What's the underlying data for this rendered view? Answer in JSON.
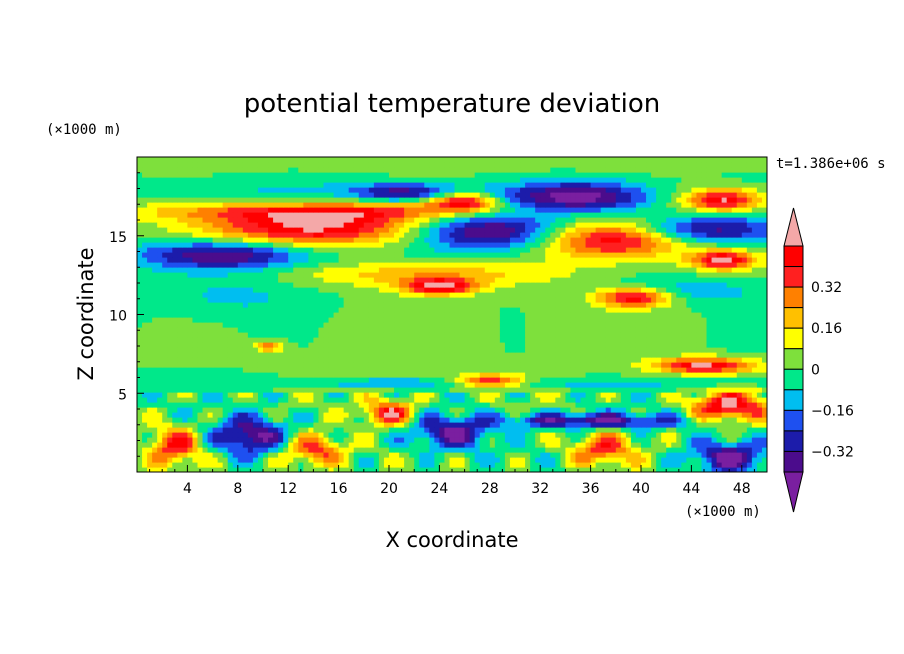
{
  "chart_data": {
    "type": "heatmap",
    "title": "potential temperature deviation",
    "xlabel": "X coordinate",
    "ylabel": "Z coordinate",
    "x_units": "(×1000 m)",
    "y_units": "(×1000 m)",
    "time_label": "t=1.386e+06 s",
    "xlim": [
      0,
      50
    ],
    "ylim": [
      0,
      20
    ],
    "x_ticks": [
      4,
      8,
      12,
      16,
      20,
      24,
      28,
      32,
      36,
      40,
      44,
      48
    ],
    "y_ticks": [
      5,
      10,
      15
    ],
    "colorbar": {
      "levels": [
        -0.48,
        -0.4,
        -0.32,
        -0.24,
        -0.16,
        -0.08,
        0,
        0.08,
        0.16,
        0.24,
        0.32,
        0.4,
        0.48
      ],
      "colors": [
        "#7a1fa0",
        "#4b0c8c",
        "#1c1caa",
        "#1e50f0",
        "#00bef0",
        "#00e88a",
        "#7ee03c",
        "#ffff00",
        "#ffc000",
        "#ff8000",
        "#ff2020",
        "#ff0000",
        "#f4a8a8"
      ],
      "tick_labels": [
        "0.32",
        "0.16",
        "0",
        "−0.16",
        "−0.32"
      ],
      "tick_values": [
        0.32,
        0.16,
        0,
        -0.16,
        -0.32
      ]
    },
    "features": [
      {
        "x": 25,
        "z": 19.5,
        "rx": 30,
        "rz": 0.5,
        "v": 0.04
      },
      {
        "x": 10,
        "z": 17.5,
        "rx": 8,
        "rz": 1.2,
        "v": -0.1
      },
      {
        "x": 21,
        "z": 17.8,
        "rx": 4,
        "rz": 0.6,
        "v": -0.36
      },
      {
        "x": 30,
        "z": 17.5,
        "rx": 6,
        "rz": 0.8,
        "v": -0.18
      },
      {
        "x": 36,
        "z": 17.5,
        "rx": 5,
        "rz": 1.0,
        "v": -0.38
      },
      {
        "x": 26,
        "z": 17.2,
        "rx": 3,
        "rz": 0.6,
        "v": 0.5
      },
      {
        "x": 46.5,
        "z": 17.3,
        "rx": 3,
        "rz": 0.7,
        "v": 0.5
      },
      {
        "x": 14,
        "z": 15.6,
        "rx": 9,
        "rz": 1.2,
        "v": 0.5
      },
      {
        "x": 14,
        "z": 16.6,
        "rx": 14,
        "rz": 0.6,
        "v": 0.3
      },
      {
        "x": 7,
        "z": 13.8,
        "rx": 7,
        "rz": 0.9,
        "v": -0.4
      },
      {
        "x": 28,
        "z": 15.3,
        "rx": 6,
        "rz": 1.2,
        "v": -0.45
      },
      {
        "x": 38,
        "z": 14.8,
        "rx": 6,
        "rz": 1.2,
        "v": 0.5
      },
      {
        "x": 45,
        "z": 15.4,
        "rx": 6,
        "rz": 0.9,
        "v": -0.4
      },
      {
        "x": 46.5,
        "z": 13.5,
        "rx": 2.5,
        "rz": 0.6,
        "v": 0.5
      },
      {
        "x": 23,
        "z": 12.6,
        "rx": 10,
        "rz": 0.8,
        "v": 0.22
      },
      {
        "x": 24,
        "z": 11.8,
        "rx": 3,
        "rz": 0.5,
        "v": 0.48
      },
      {
        "x": 39.5,
        "z": 11.1,
        "rx": 3,
        "rz": 0.6,
        "v": 0.48
      },
      {
        "x": 44,
        "z": 11.5,
        "rx": 6,
        "rz": 0.8,
        "v": -0.14
      },
      {
        "x": 8,
        "z": 11.2,
        "rx": 6,
        "rz": 1.3,
        "v": -0.1
      },
      {
        "x": 20,
        "z": 8.5,
        "rx": 6,
        "rz": 2.5,
        "v": 0.05
      },
      {
        "x": 36,
        "z": 9.0,
        "rx": 5,
        "rz": 2.0,
        "v": 0.05
      },
      {
        "x": 10.5,
        "z": 8.0,
        "rx": 1.2,
        "rz": 0.3,
        "v": 0.3
      },
      {
        "x": 25,
        "z": 5.7,
        "rx": 25,
        "rz": 0.3,
        "v": -0.14
      },
      {
        "x": 45,
        "z": 6.8,
        "rx": 4,
        "rz": 0.5,
        "v": 0.5
      },
      {
        "x": 28,
        "z": 5.8,
        "rx": 3,
        "rz": 0.4,
        "v": 0.45
      },
      {
        "x": 47,
        "z": 4.2,
        "rx": 3,
        "rz": 0.9,
        "v": 0.5
      },
      {
        "x": 20,
        "z": 3.8,
        "rx": 2,
        "rz": 0.8,
        "v": 0.45
      },
      {
        "x": 36,
        "z": 3.3,
        "rx": 7,
        "rz": 0.5,
        "v": -0.4
      },
      {
        "x": 25,
        "z": 2.5,
        "rx": 3,
        "rz": 1.0,
        "v": -0.4
      },
      {
        "x": 9,
        "z": 2.3,
        "rx": 3,
        "rz": 1.2,
        "v": -0.42
      },
      {
        "x": 3,
        "z": 1.7,
        "rx": 2,
        "rz": 1.2,
        "v": 0.4
      },
      {
        "x": 14,
        "z": 1.4,
        "rx": 2.5,
        "rz": 1.0,
        "v": 0.36
      },
      {
        "x": 37,
        "z": 1.5,
        "rx": 2.5,
        "rz": 1.0,
        "v": 0.36
      },
      {
        "x": 47,
        "z": 1.0,
        "rx": 3,
        "rz": 1.0,
        "v": -0.4
      }
    ]
  }
}
